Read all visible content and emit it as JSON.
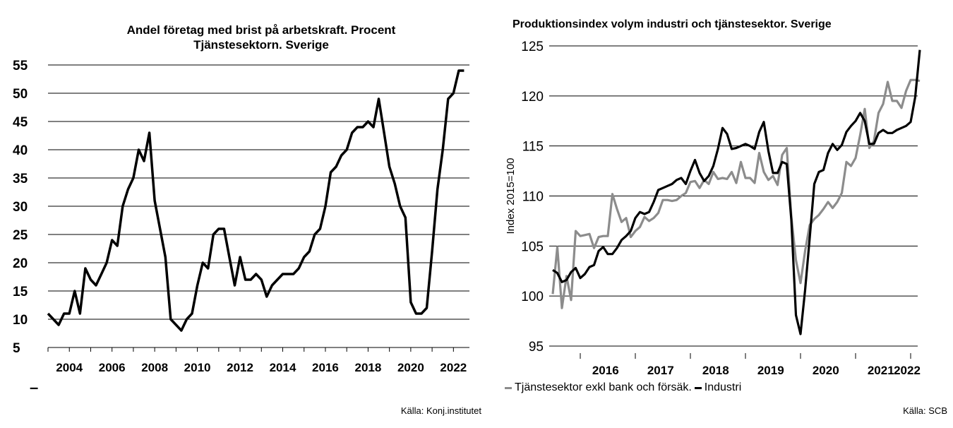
{
  "chart_data": [
    {
      "type": "line",
      "title": "Andel företag med brist på arbetskraft. Procent",
      "subtitle": "Tjänstesektorn. Sverige",
      "xlabel": "",
      "ylabel": "",
      "ylim": [
        5,
        55
      ],
      "xlim": [
        2003,
        2022.75
      ],
      "yticks": [
        "5",
        "10",
        "15",
        "20",
        "25",
        "30",
        "35",
        "40",
        "45",
        "50",
        "55"
      ],
      "xticks": [
        "2004",
        "2006",
        "2008",
        "2010",
        "2012",
        "2014",
        "2016",
        "2018",
        "2020",
        "2022"
      ],
      "grid": "horizontal",
      "source": "Källa: Konj.institutet",
      "series": [
        {
          "color": "#000000",
          "x": [
            2003.0,
            2003.25,
            2003.5,
            2003.75,
            2004.0,
            2004.25,
            2004.5,
            2004.75,
            2005.0,
            2005.25,
            2005.5,
            2005.75,
            2006.0,
            2006.25,
            2006.5,
            2006.75,
            2007.0,
            2007.25,
            2007.5,
            2007.75,
            2008.0,
            2008.25,
            2008.5,
            2008.75,
            2009.0,
            2009.25,
            2009.5,
            2009.75,
            2010.0,
            2010.25,
            2010.5,
            2010.75,
            2011.0,
            2011.25,
            2011.5,
            2011.75,
            2012.0,
            2012.25,
            2012.5,
            2012.75,
            2013.0,
            2013.25,
            2013.5,
            2013.75,
            2014.0,
            2014.25,
            2014.5,
            2014.75,
            2015.0,
            2015.25,
            2015.5,
            2015.75,
            2016.0,
            2016.25,
            2016.5,
            2016.75,
            2017.0,
            2017.25,
            2017.5,
            2017.75,
            2018.0,
            2018.25,
            2018.5,
            2018.75,
            2019.0,
            2019.25,
            2019.5,
            2019.75,
            2020.0,
            2020.25,
            2020.5,
            2020.75,
            2021.0,
            2021.25,
            2021.5,
            2021.75,
            2022.0,
            2022.25,
            2022.5
          ],
          "values": [
            11,
            10,
            9,
            11,
            11,
            15,
            11,
            19,
            17,
            16,
            18,
            20,
            24,
            23,
            30,
            33,
            35,
            40,
            38,
            43,
            31,
            26,
            21,
            10,
            9,
            8,
            10,
            11,
            16,
            20,
            19,
            25,
            26,
            26,
            21,
            16,
            21,
            17,
            17,
            18,
            17,
            14,
            16,
            17,
            18,
            18,
            18,
            19,
            21,
            22,
            25,
            26,
            30,
            36,
            37,
            39,
            40,
            43,
            44,
            44,
            45,
            44,
            49,
            43,
            37,
            34,
            30,
            28,
            13,
            11,
            11,
            12,
            22,
            33,
            40,
            49,
            50,
            54,
            54
          ]
        }
      ]
    },
    {
      "type": "line",
      "title": "Produktionsindex volym industri och tjänstesektor. Sverige",
      "xlabel": "",
      "ylabel": "Index 2015=100",
      "ylim": [
        95,
        125
      ],
      "yticks": [
        "95",
        "100",
        "105",
        "110",
        "115",
        "120",
        "125"
      ],
      "xticks": [
        "2016",
        "2017",
        "2018",
        "2019",
        "2020",
        "2021",
        "2022"
      ],
      "grid": "horizontal",
      "source": "Källa: SCB",
      "legend": "bottom",
      "series": [
        {
          "name": "Tjänstesektor exkl bank och försäk.",
          "color": "#8c8c8c",
          "values": [
            100.2,
            104.9,
            98.8,
            102.0,
            99.6,
            106.5,
            106.0,
            106.1,
            106.2,
            104.8,
            105.9,
            106.0,
            106.0,
            110.2,
            108.7,
            107.4,
            107.8,
            105.9,
            106.5,
            106.9,
            107.9,
            107.5,
            107.8,
            108.3,
            109.6,
            109.6,
            109.5,
            109.6,
            110.0,
            110.3,
            111.4,
            111.5,
            110.8,
            111.6,
            111.2,
            112.4,
            111.7,
            111.8,
            111.7,
            112.4,
            111.3,
            113.4,
            111.8,
            111.8,
            111.3,
            114.3,
            112.4,
            111.6,
            112.0,
            111.1,
            114.1,
            114.8,
            107.9,
            103.6,
            101.3,
            104.5,
            107.1,
            107.7,
            108.1,
            108.7,
            109.4,
            108.8,
            109.4,
            110.3,
            113.4,
            113.0,
            113.8,
            116.1,
            118.7,
            114.8,
            115.5,
            118.3,
            119.2,
            121.4,
            119.5,
            119.5,
            118.8,
            120.5,
            121.6,
            121.6,
            121.5
          ]
        },
        {
          "name": "Industri",
          "color": "#000000",
          "values": [
            102.6,
            102.3,
            101.4,
            101.6,
            102.4,
            102.8,
            101.8,
            102.2,
            102.9,
            103.1,
            104.5,
            104.9,
            104.2,
            104.2,
            104.8,
            105.6,
            106.0,
            106.5,
            107.8,
            108.4,
            108.2,
            108.4,
            109.4,
            110.6,
            110.8,
            111.0,
            111.2,
            111.6,
            111.8,
            111.2,
            112.5,
            113.6,
            112.3,
            111.5,
            112.0,
            113.0,
            114.7,
            116.8,
            116.2,
            114.7,
            114.8,
            115.0,
            115.2,
            115.0,
            114.7,
            116.4,
            117.4,
            114.5,
            112.3,
            112.3,
            113.4,
            113.2,
            107.6,
            98.1,
            96.2,
            100.6,
            105.8,
            111.2,
            112.4,
            112.6,
            114.3,
            115.2,
            114.6,
            115.1,
            116.4,
            117.0,
            117.5,
            118.3,
            117.5,
            115.2,
            115.2,
            116.3,
            116.6,
            116.3,
            116.3,
            116.6,
            116.8,
            117.0,
            117.4,
            119.9,
            124.6
          ]
        }
      ]
    }
  ],
  "left_legend_marker": "–"
}
